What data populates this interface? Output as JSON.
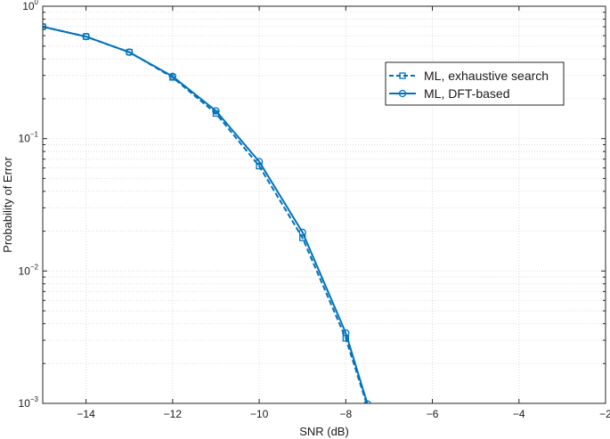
{
  "chart_data": {
    "type": "line",
    "title": "",
    "xlabel": "SNR (dB)",
    "ylabel": "Probability of Error",
    "xlim": [
      -15,
      -2
    ],
    "ylim": [
      0.001,
      1
    ],
    "yscale": "log",
    "grid": true,
    "legend_position": "top-right",
    "x_ticks": [
      -14,
      -12,
      -10,
      -8,
      -6,
      -4,
      -2
    ],
    "y_ticks": [
      {
        "value": 0.001,
        "base": "10",
        "exp": "-3"
      },
      {
        "value": 0.01,
        "base": "10",
        "exp": "-2"
      },
      {
        "value": 0.1,
        "base": "10",
        "exp": "-1"
      },
      {
        "value": 1,
        "base": "10",
        "exp": "0"
      }
    ],
    "series": [
      {
        "name": "ML, exhaustive search",
        "style": "dashed",
        "marker": "square",
        "color": "#0072BD",
        "x": [
          -15,
          -14,
          -13,
          -12,
          -11,
          -10,
          -9,
          -8,
          -7.5
        ],
        "y": [
          0.7,
          0.59,
          0.45,
          0.29,
          0.155,
          0.062,
          0.0178,
          0.0031,
          0.00095
        ]
      },
      {
        "name": "ML, DFT-based",
        "style": "solid",
        "marker": "circle",
        "color": "#0072BD",
        "x": [
          -15,
          -14,
          -13,
          -12,
          -11,
          -10,
          -9,
          -8,
          -7.5
        ],
        "y": [
          0.7,
          0.59,
          0.45,
          0.295,
          0.162,
          0.067,
          0.0196,
          0.0034,
          0.00099
        ]
      }
    ]
  }
}
